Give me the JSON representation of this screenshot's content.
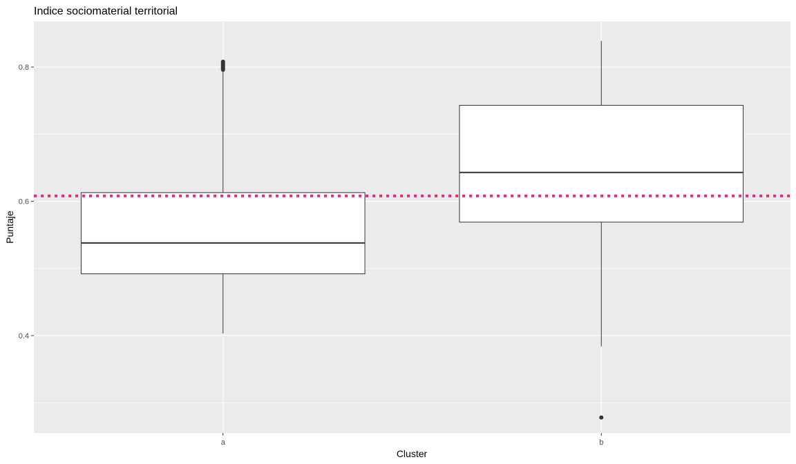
{
  "chart_data": {
    "type": "boxplot",
    "title": "Indice sociomaterial territorial",
    "xlabel": "Cluster",
    "ylabel": "Puntaje",
    "categories": [
      "a",
      "b"
    ],
    "ylim": [
      0.255,
      0.868
    ],
    "yticks": [
      0.4,
      0.6,
      0.8
    ],
    "yticklabels": [
      "0.4",
      "0.6",
      "0.8"
    ],
    "grid": true,
    "boxes": [
      {
        "category": "a",
        "whisker_low": 0.403,
        "q1": 0.492,
        "median": 0.538,
        "q3": 0.613,
        "whisker_high": 0.795,
        "outliers": [
          0.796,
          0.798,
          0.8,
          0.802,
          0.804,
          0.806,
          0.808
        ]
      },
      {
        "category": "b",
        "whisker_low": 0.384,
        "q1": 0.569,
        "median": 0.643,
        "q3": 0.743,
        "whisker_high": 0.839,
        "outliers": [
          0.278
        ]
      }
    ],
    "reference_line": {
      "value": 0.608,
      "color": "#ff1f7f",
      "style": "dotted"
    },
    "colors": {
      "panel": "#ebebeb",
      "grid": "#ffffff",
      "box_fill": "#ffffff",
      "box_stroke": "#333333",
      "outlier": "#333333"
    }
  }
}
